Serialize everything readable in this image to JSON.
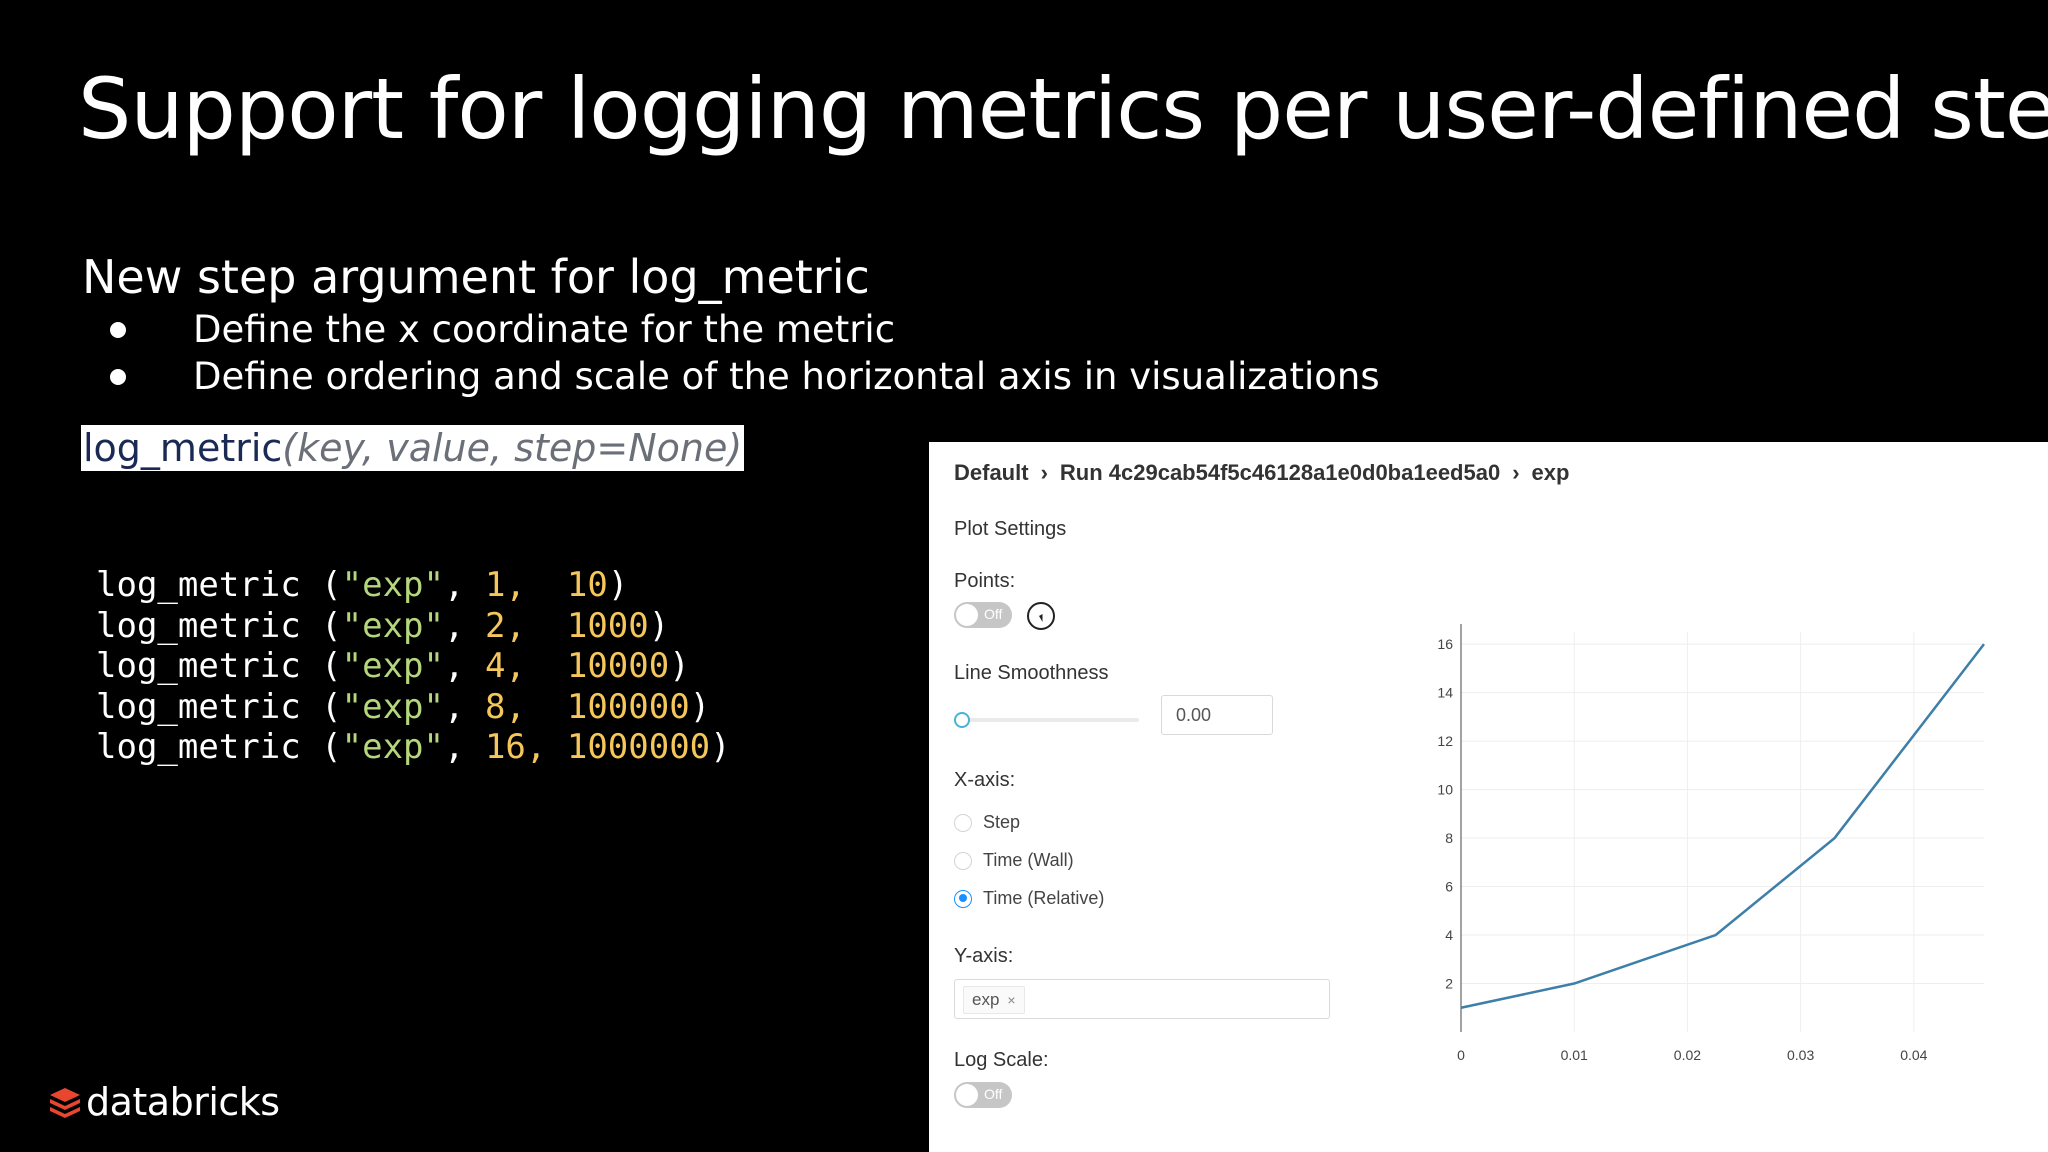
{
  "slide": {
    "title": "Support for logging metrics per user-defined step",
    "subtitle": "New step argument for log_metric",
    "bullets": [
      "Define the x coordinate for the metric",
      "Define ordering and scale of the horizontal axis in visualizations"
    ],
    "signature": {
      "name": "log_metric",
      "open": "(",
      "params": "key, value, step=None",
      "close": ")"
    },
    "code_lines": [
      {
        "fn": "log_metric (",
        "key": "\"exp\"",
        "sep": ", ",
        "step": "1,",
        "pad": "  ",
        "value": "10",
        "close": ")"
      },
      {
        "fn": "log_metric (",
        "key": "\"exp\"",
        "sep": ", ",
        "step": "2,",
        "pad": "  ",
        "value": "1000",
        "close": ")"
      },
      {
        "fn": "log_metric (",
        "key": "\"exp\"",
        "sep": ", ",
        "step": "4,",
        "pad": "  ",
        "value": "10000",
        "close": ")"
      },
      {
        "fn": "log_metric (",
        "key": "\"exp\"",
        "sep": ", ",
        "step": "8,",
        "pad": "  ",
        "value": "100000",
        "close": ")"
      },
      {
        "fn": "log_metric (",
        "key": "\"exp\"",
        "sep": ", ",
        "step": "16,",
        "pad": " ",
        "value": "1000000",
        "close": ")"
      }
    ],
    "brand": "databricks",
    "brand_color": "#e8462f",
    "string_color": "#b4d67c",
    "number_color": "#f5c75a"
  },
  "panel": {
    "breadcrumb": {
      "experiment": "Default",
      "run": "Run 4c29cab54f5c46128a1e0d0ba1eed5a0",
      "metric": "exp",
      "separator_icon": "chevron-right-icon"
    },
    "plot_settings_label": "Plot Settings",
    "points_label": "Points:",
    "points_toggle": "Off",
    "line_smoothness_label": "Line Smoothness",
    "line_smoothness_value": "0.00",
    "line_smoothness_level": 0,
    "xaxis_label": "X-axis:",
    "xaxis_options": [
      {
        "label": "Step",
        "selected": false
      },
      {
        "label": "Time (Wall)",
        "selected": false
      },
      {
        "label": "Time (Relative)",
        "selected": true
      }
    ],
    "yaxis_label": "Y-axis:",
    "yaxis_tag": "exp",
    "log_scale_label": "Log Scale:",
    "log_scale_toggle": "Off",
    "accent_color": "#1890ff",
    "line_color": "#3d7fa8"
  },
  "chart_data": {
    "type": "line",
    "x": [
      0,
      0.01,
      0.0225,
      0.033,
      0.0462
    ],
    "y": [
      1,
      2,
      4,
      8,
      16
    ],
    "xlim": [
      0,
      0.0462
    ],
    "ylim": [
      0,
      16.5
    ],
    "xticks": [
      0,
      0.01,
      0.02,
      0.03,
      0.04
    ],
    "xtick_labels": [
      "0",
      "0.01",
      "0.02",
      "0.03",
      "0.04"
    ],
    "yticks": [
      2,
      4,
      6,
      8,
      10,
      12,
      14,
      16
    ],
    "ytick_labels": [
      "2",
      "4",
      "6",
      "8",
      "10",
      "12",
      "14",
      "16"
    ],
    "grid": true,
    "title": "",
    "xlabel": "",
    "ylabel": ""
  }
}
